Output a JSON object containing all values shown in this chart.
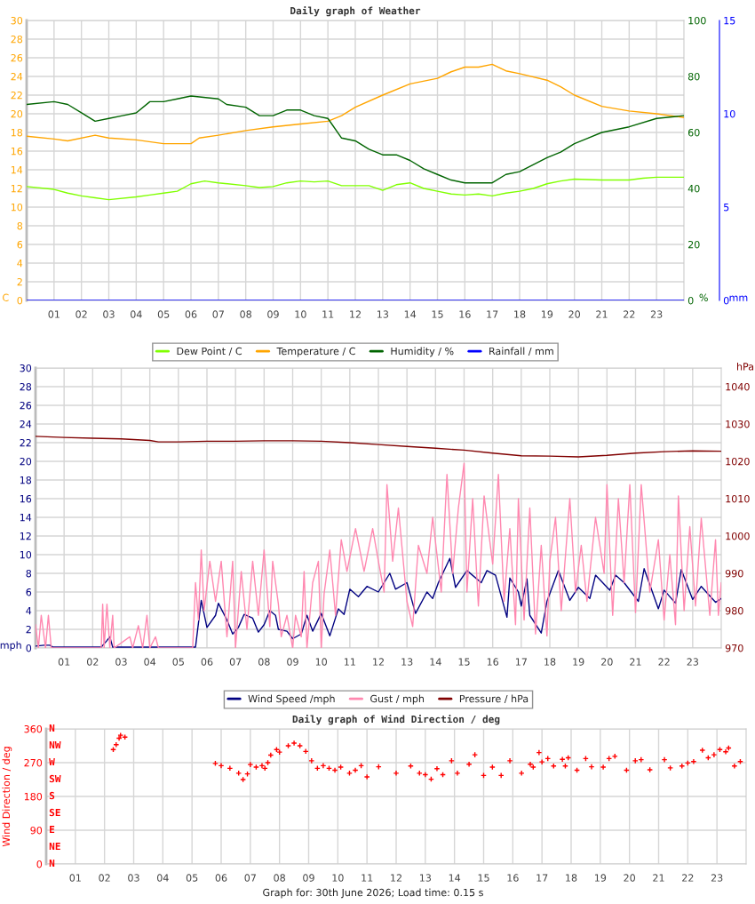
{
  "chart_data": [
    {
      "type": "line",
      "title": "Daily graph of Weather",
      "ylabel": "C",
      "y2label": "%",
      "y3label": "mm",
      "xlim": [
        0,
        24
      ],
      "xticks": [
        {
          "value": 1,
          "label": "01"
        },
        {
          "value": 2,
          "label": "02"
        },
        {
          "value": 3,
          "label": "03"
        },
        {
          "value": 4,
          "label": "04"
        },
        {
          "value": 5,
          "label": "05"
        },
        {
          "value": 6,
          "label": "06"
        },
        {
          "value": 7,
          "label": "07"
        },
        {
          "value": 8,
          "label": "08"
        },
        {
          "value": 9,
          "label": "09"
        },
        10,
        11,
        12,
        13,
        14,
        15,
        16,
        17,
        18,
        19,
        20,
        21,
        22,
        23
      ],
      "ylim": [
        0,
        30
      ],
      "yticks": [
        0,
        2,
        4,
        6,
        8,
        10,
        12,
        14,
        16,
        18,
        20,
        22,
        24,
        26,
        28,
        30
      ],
      "y2lim": [
        0,
        100
      ],
      "y2ticks": [
        0,
        20,
        40,
        60,
        80,
        100
      ],
      "y3lim": [
        0,
        15
      ],
      "y3ticks": [
        0,
        5,
        10,
        15
      ],
      "grid": true,
      "legend": "bottom",
      "series": [
        {
          "name": "Dew Point / C",
          "color": "#80ff00",
          "x": [
            0,
            1,
            1.5,
            2,
            2.5,
            3,
            4,
            4.5,
            5,
            5.5,
            6,
            6.5,
            7,
            8,
            8.5,
            9,
            9.5,
            10,
            10.5,
            11,
            11.5,
            12,
            12.5,
            13,
            13.5,
            14,
            14.5,
            15,
            15.5,
            16,
            16.5,
            17,
            17.5,
            18,
            18.5,
            19,
            19.5,
            20,
            21,
            22,
            22.5,
            23,
            24
          ],
          "values": [
            12.2,
            11.9,
            11.5,
            11.2,
            11.0,
            10.8,
            11.1,
            11.3,
            11.5,
            11.7,
            12.5,
            12.8,
            12.6,
            12.3,
            12.1,
            12.2,
            12.6,
            12.8,
            12.7,
            12.8,
            12.3,
            12.3,
            12.3,
            11.8,
            12.4,
            12.6,
            12.0,
            11.7,
            11.4,
            11.3,
            11.4,
            11.2,
            11.5,
            11.7,
            12.0,
            12.5,
            12.8,
            13.0,
            12.9,
            12.9,
            13.1,
            13.2,
            13.2
          ]
        },
        {
          "name": "Temperature / C",
          "color": "#ffa500",
          "x": [
            0,
            1,
            1.5,
            2.5,
            3,
            4,
            5,
            6,
            6.3,
            7,
            8,
            9,
            10,
            11,
            11.5,
            12,
            13,
            14,
            15,
            15.5,
            16,
            16.5,
            17,
            17.5,
            18,
            19,
            19.5,
            20,
            21,
            22,
            23,
            24
          ],
          "values": [
            17.6,
            17.3,
            17.1,
            17.7,
            17.4,
            17.2,
            16.8,
            16.8,
            17.4,
            17.7,
            18.2,
            18.6,
            18.9,
            19.2,
            19.8,
            20.7,
            22.0,
            23.2,
            23.8,
            24.5,
            25.0,
            25.0,
            25.3,
            24.6,
            24.3,
            23.6,
            22.9,
            22.0,
            20.8,
            20.3,
            20.0,
            19.6
          ]
        },
        {
          "name": "Humidity / %",
          "color": "#006400",
          "axis": "y2",
          "x": [
            0,
            1,
            1.5,
            2,
            2.5,
            3,
            3.5,
            4,
            4.5,
            5,
            5.5,
            6,
            7,
            7.3,
            8,
            8.5,
            9,
            9.5,
            10,
            10.5,
            11,
            11.5,
            12,
            12.5,
            13,
            13.5,
            14,
            14.5,
            15,
            15.5,
            16,
            16.5,
            17,
            17.5,
            18,
            19,
            19.5,
            20,
            20.5,
            21,
            22,
            23,
            24
          ],
          "values": [
            70,
            71,
            70,
            67,
            64,
            65,
            66,
            67,
            71,
            71,
            72,
            73,
            72,
            70,
            69,
            66,
            66,
            68,
            68,
            66,
            65,
            58,
            57,
            54,
            52,
            52,
            50,
            47,
            45,
            43,
            42,
            42,
            42,
            45,
            46,
            51,
            53,
            56,
            58,
            60,
            62,
            65,
            66
          ]
        },
        {
          "name": "Rainfall / mm",
          "color": "#0000ff",
          "axis": "y3",
          "x": [
            0,
            24
          ],
          "values": [
            0,
            0
          ]
        }
      ]
    },
    {
      "type": "line",
      "ylabel": "mph",
      "y2label": "hPa",
      "xlim": [
        0,
        24
      ],
      "xticks": [
        {
          "value": 1,
          "label": "01"
        },
        {
          "value": 2,
          "label": "02"
        },
        {
          "value": 3,
          "label": "03"
        },
        {
          "value": 4,
          "label": "04"
        },
        {
          "value": 5,
          "label": "05"
        },
        {
          "value": 6,
          "label": "06"
        },
        {
          "value": 7,
          "label": "07"
        },
        {
          "value": 8,
          "label": "08"
        },
        {
          "value": 9,
          "label": "09"
        },
        10,
        11,
        12,
        13,
        14,
        15,
        16,
        17,
        18,
        19,
        20,
        21,
        22,
        23
      ],
      "ylim": [
        0,
        30
      ],
      "yticks": [
        0,
        2,
        4,
        6,
        8,
        10,
        12,
        14,
        16,
        18,
        20,
        22,
        24,
        26,
        28,
        30
      ],
      "y2lim": [
        970,
        1045
      ],
      "y2ticks": [
        970,
        980,
        990,
        1000,
        1010,
        1020,
        1030,
        1040
      ],
      "grid": true,
      "legend": "bottom",
      "series": [
        {
          "name": "Wind Speed /mph",
          "color": "#000080",
          "x": [
            0,
            0.3,
            0.5,
            0.6,
            2.3,
            2.5,
            2.6,
            2.7,
            5.6,
            5.8,
            6.0,
            6.3,
            6.4,
            6.7,
            6.9,
            7.1,
            7.3,
            7.6,
            7.8,
            8.0,
            8.2,
            8.4,
            8.5,
            8.8,
            9.0,
            9.3,
            9.5,
            9.7,
            10,
            10.3,
            10.6,
            10.8,
            11,
            11.3,
            11.6,
            12.0,
            12.4,
            12.6,
            13.0,
            13.3,
            13.7,
            13.9,
            14.1,
            14.5,
            14.7,
            15.1,
            15.6,
            15.8,
            16.1,
            16.5,
            16.6,
            16.9,
            17.0,
            17.2,
            17.3,
            17.7,
            17.9,
            18.3,
            18.7,
            19.0,
            19.4,
            19.6,
            20.1,
            20.3,
            20.6,
            21.1,
            21.3,
            21.8,
            22.0,
            22.4,
            22.6,
            23.0,
            23.3,
            23.8,
            24.0
          ],
          "values": [
            0.2,
            0.3,
            0.3,
            0.1,
            0.1,
            0.8,
            1.2,
            0.1,
            0.1,
            5.1,
            2.2,
            3.5,
            4.8,
            3.0,
            1.5,
            2.2,
            3.6,
            3.2,
            1.7,
            2.5,
            4.0,
            3.5,
            2.0,
            1.8,
            1.0,
            1.5,
            3.5,
            1.8,
            3.7,
            1.3,
            4.2,
            3.6,
            6.3,
            5.5,
            6.6,
            6.0,
            8.0,
            6.3,
            7.0,
            3.7,
            6.0,
            5.3,
            7.0,
            9.6,
            6.5,
            8.3,
            7.0,
            8.3,
            7.8,
            3.3,
            7.5,
            6.0,
            4.5,
            7.4,
            3.5,
            1.6,
            5.0,
            8.3,
            5.1,
            6.5,
            5.3,
            7.8,
            6.2,
            7.8,
            7.0,
            5.0,
            8.5,
            4.2,
            6.2,
            4.8,
            8.4,
            5.2,
            6.6,
            4.9,
            5.3
          ]
        },
        {
          "name": "Gust / mph",
          "color": "#ff88b0",
          "x": [
            0,
            0.1,
            0.2,
            0.35,
            0.45,
            0.55,
            2.3,
            2.35,
            2.4,
            2.5,
            2.6,
            2.7,
            2.75,
            3.3,
            3.4,
            3.6,
            3.75,
            3.9,
            4.0,
            4.2,
            4.3,
            5.5,
            5.6,
            5.7,
            5.8,
            5.9,
            6.1,
            6.3,
            6.5,
            6.7,
            6.9,
            7.0,
            7.2,
            7.4,
            7.6,
            7.8,
            8.0,
            8.2,
            8.3,
            8.5,
            8.6,
            8.8,
            9.0,
            9.1,
            9.3,
            9.4,
            9.5,
            9.7,
            9.9,
            10.0,
            10.1,
            10.3,
            10.5,
            10.7,
            10.9,
            11.2,
            11.5,
            11.8,
            12.0,
            12.2,
            12.3,
            12.5,
            12.7,
            13.0,
            13.2,
            13.4,
            13.7,
            13.9,
            14.2,
            14.4,
            14.6,
            14.8,
            15.0,
            15.1,
            15.3,
            15.5,
            15.7,
            16.0,
            16.2,
            16.4,
            16.6,
            16.8,
            16.9,
            17.1,
            17.3,
            17.5,
            17.7,
            17.9,
            18.0,
            18.2,
            18.4,
            18.7,
            18.9,
            19.1,
            19.3,
            19.6,
            19.9,
            20.0,
            20.2,
            20.4,
            20.6,
            20.8,
            21.0,
            21.2,
            21.5,
            21.8,
            22.0,
            22.2,
            22.4,
            22.5,
            22.7,
            22.9,
            23.1,
            23.3,
            23.6,
            23.8,
            23.9,
            24.0
          ],
          "values": [
            2.5,
            0,
            3.5,
            0,
            3.5,
            0,
            0,
            4.7,
            0,
            4.7,
            0,
            3.5,
            0,
            1.2,
            0,
            2.4,
            0,
            3.5,
            0,
            1.2,
            0,
            0,
            7,
            3,
            10.5,
            4,
            9.3,
            5,
            9.3,
            1.2,
            9.3,
            0,
            8.2,
            2,
            9.3,
            3.5,
            10.5,
            2.3,
            9.3,
            4.7,
            1.2,
            3.5,
            0,
            3.5,
            1.2,
            8.2,
            0,
            7,
            9.3,
            0,
            5.8,
            10.5,
            3.5,
            11.6,
            8.2,
            12.8,
            8.2,
            12.8,
            9.3,
            6,
            17.5,
            9.3,
            15,
            5,
            2.3,
            11,
            8,
            14,
            6,
            18.6,
            8,
            15,
            19.8,
            6,
            16,
            4.5,
            16.3,
            9,
            18.6,
            5,
            12.8,
            2.5,
            16,
            3,
            15,
            1.5,
            11,
            1.3,
            9.3,
            14,
            4,
            16,
            6,
            11,
            5,
            14,
            8,
            17.5,
            3.5,
            16,
            7,
            17.5,
            3.8,
            17.5,
            6,
            11.6,
            3,
            10,
            2.5,
            16.3,
            4,
            13,
            4.5,
            13.9,
            3.5,
            11.6,
            3.5,
            7
          ]
        },
        {
          "name": "Pressure / hPa",
          "color": "#800000",
          "axis": "y2",
          "x": [
            0,
            1,
            2,
            3,
            4,
            4.3,
            5,
            6,
            7,
            8,
            9,
            10,
            11,
            12,
            13,
            14,
            15,
            16,
            17,
            18,
            19,
            20,
            21,
            22,
            23,
            24
          ],
          "values": [
            1026.7,
            1026.4,
            1026.2,
            1026.0,
            1025.6,
            1025.2,
            1025.2,
            1025.4,
            1025.4,
            1025.5,
            1025.5,
            1025.4,
            1025.0,
            1024.5,
            1024.0,
            1023.5,
            1023.0,
            1022.2,
            1021.5,
            1021.4,
            1021.2,
            1021.6,
            1022.2,
            1022.6,
            1022.8,
            1022.7
          ]
        }
      ]
    },
    {
      "type": "scatter",
      "title": "Daily graph of Wind Direction / deg",
      "ylabel": "Wind Direction / deg",
      "marker": "cross",
      "xlim": [
        0,
        24
      ],
      "xticks": [
        {
          "value": 1,
          "label": "01"
        },
        {
          "value": 2,
          "label": "02"
        },
        {
          "value": 3,
          "label": "03"
        },
        {
          "value": 4,
          "label": "04"
        },
        {
          "value": 5,
          "label": "05"
        },
        {
          "value": 6,
          "label": "06"
        },
        {
          "value": 7,
          "label": "07"
        },
        {
          "value": 8,
          "label": "08"
        },
        {
          "value": 9,
          "label": "09"
        },
        10,
        11,
        12,
        13,
        14,
        15,
        16,
        17,
        18,
        19,
        20,
        21,
        22,
        23
      ],
      "ylim": [
        0,
        360
      ],
      "yticks": [
        0,
        90,
        180,
        270,
        360
      ],
      "grid": true,
      "annotations": [
        "N",
        "NE",
        "E",
        "SE",
        "S",
        "SW",
        "W",
        "NW",
        "N",
        "Graph for: 30th June 2026; Load time: 0.15 s"
      ],
      "series": [
        {
          "color": "#ff0000",
          "x": [
            2.3,
            2.4,
            2.5,
            2.55,
            2.7,
            5.8,
            6.0,
            6.3,
            6.6,
            6.75,
            6.9,
            7.0,
            7.2,
            7.4,
            7.5,
            7.6,
            7.7,
            7.9,
            8.0,
            8.3,
            8.5,
            8.7,
            8.9,
            9.1,
            9.3,
            9.5,
            9.7,
            9.9,
            10.1,
            10.4,
            10.6,
            10.8,
            11.0,
            11.4,
            12.0,
            12.5,
            12.8,
            13.0,
            13.2,
            13.4,
            13.6,
            13.9,
            14.1,
            14.5,
            14.7,
            15.0,
            15.3,
            15.6,
            15.9,
            16.3,
            16.6,
            16.7,
            16.9,
            17.0,
            17.2,
            17.4,
            17.7,
            17.8,
            17.9,
            18.2,
            18.5,
            18.7,
            19.1,
            19.3,
            19.5,
            19.9,
            20.2,
            20.4,
            20.7,
            21.2,
            21.4,
            21.8,
            22.0,
            22.2,
            22.5,
            22.7,
            22.9,
            23.1,
            23.3,
            23.4,
            23.6,
            23.8
          ],
          "values": [
            305,
            318,
            335,
            343,
            338,
            268,
            262,
            255,
            242,
            225,
            240,
            265,
            258,
            262,
            255,
            270,
            290,
            305,
            298,
            315,
            322,
            315,
            300,
            275,
            255,
            262,
            255,
            250,
            258,
            242,
            250,
            262,
            232,
            259,
            242,
            261,
            242,
            238,
            226,
            254,
            238,
            275,
            242,
            266,
            291,
            236,
            258,
            236,
            275,
            242,
            266,
            258,
            297,
            272,
            281,
            261,
            279,
            261,
            283,
            250,
            281,
            259,
            258,
            281,
            287,
            250,
            275,
            278,
            251,
            278,
            256,
            261,
            269,
            273,
            303,
            283,
            291,
            305,
            299,
            309,
            261,
            273
          ]
        }
      ]
    }
  ]
}
